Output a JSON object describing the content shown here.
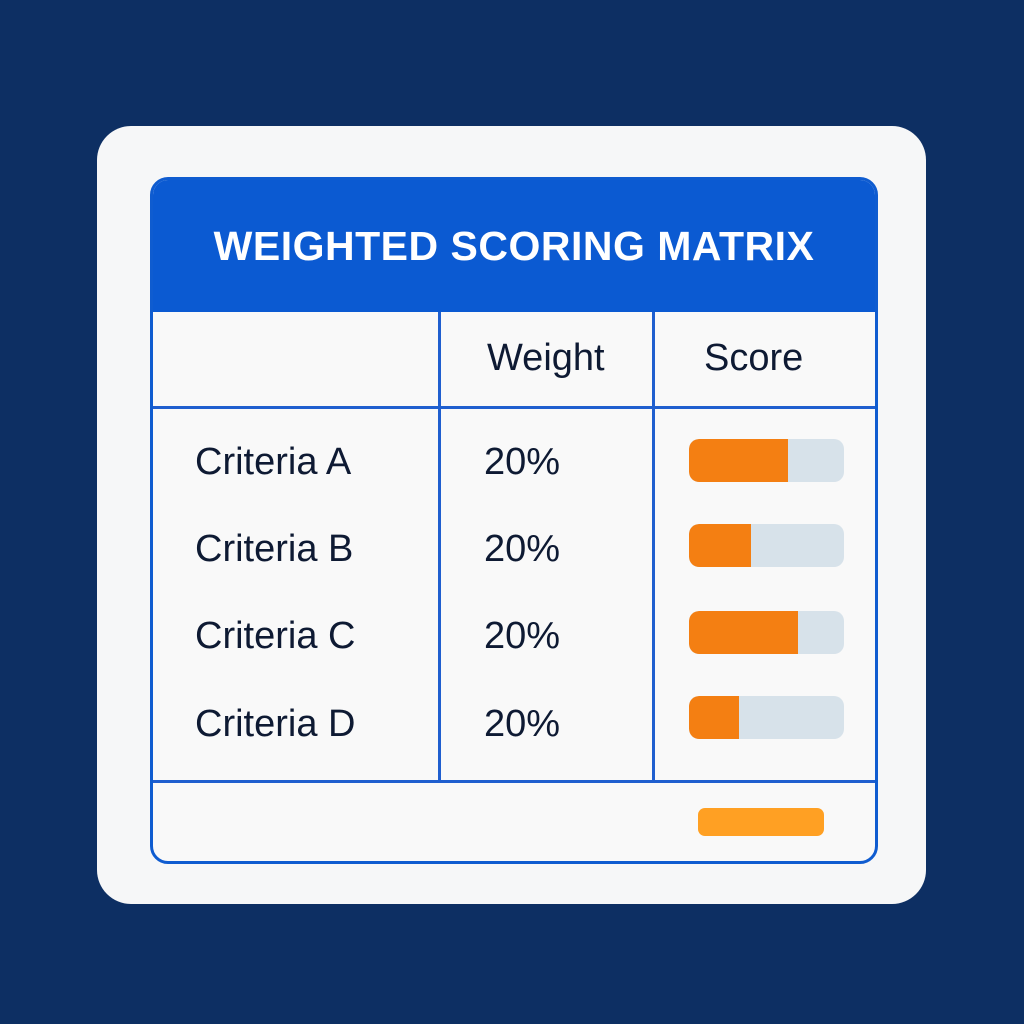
{
  "matrix": {
    "title": "WEIGHTED SCORING MATRIX",
    "headers": {
      "criteria": "",
      "weight": "Weight",
      "score": "Score"
    },
    "rows": [
      {
        "label": "Criteria A",
        "weight": "20%",
        "score": 0.64
      },
      {
        "label": "Criteria B",
        "weight": "20%",
        "score": 0.4
      },
      {
        "label": "Criteria C",
        "weight": "20%",
        "score": 0.7
      },
      {
        "label": "Criteria D",
        "weight": "20%",
        "score": 0.32
      }
    ]
  },
  "colors": {
    "background": "#0d2f63",
    "accent": "#0b5ad2",
    "score_fill": "#f47f12",
    "score_track": "#d7e2ea",
    "total_bar": "#ffa023"
  }
}
